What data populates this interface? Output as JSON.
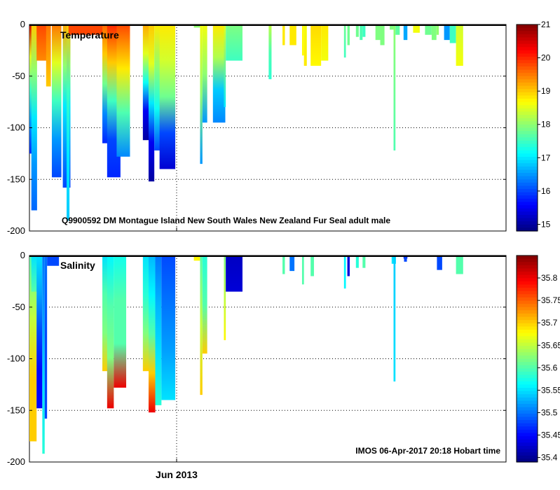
{
  "chart_data": [
    {
      "type": "heatmap",
      "title": "Temperature",
      "annotation": "Q9900592 DM Montague Island New South Wales New Zealand Fur Seal adult male",
      "ylim": [
        -200,
        0
      ],
      "yticks": [
        0,
        -50,
        -100,
        -150,
        -200
      ],
      "colorbar": {
        "min": 14.8,
        "max": 21.0,
        "ticks": [
          21,
          20,
          19,
          18,
          17,
          16,
          15
        ]
      },
      "profiles": [
        {
          "x": 0.0,
          "w": 1.5,
          "depth": 125,
          "v": [
            20.5,
            18.5,
            17.5,
            16.5,
            15.8
          ]
        },
        {
          "x": 0.4,
          "w": 1.2,
          "depth": 180,
          "v": [
            19.0,
            18.0,
            17.0,
            16.5,
            16.2
          ]
        },
        {
          "x": 1.5,
          "w": 2.2,
          "depth": 35,
          "v": [
            19.8,
            19.6,
            19.4
          ]
        },
        {
          "x": 3.5,
          "w": 1.0,
          "depth": 60,
          "v": [
            19.5,
            19.0
          ]
        },
        {
          "x": 4.7,
          "w": 2.0,
          "depth": 148,
          "v": [
            19.5,
            18.5,
            17.5,
            16.5,
            16.0
          ]
        },
        {
          "x": 7.0,
          "w": 1.6,
          "depth": 158,
          "v": [
            19.2,
            18.0,
            17.0,
            16.5,
            16.0
          ]
        },
        {
          "x": 7.8,
          "w": 0.6,
          "depth": 190,
          "v": [
            19.0,
            17.5,
            17.0,
            16.8
          ]
        },
        {
          "x": 8.2,
          "w": 7.5,
          "depth": 10,
          "v": [
            19.8
          ]
        },
        {
          "x": 15.3,
          "w": 1.6,
          "depth": 115,
          "v": [
            19.6,
            19.0,
            17.8,
            16.4,
            15.8
          ]
        },
        {
          "x": 16.3,
          "w": 2.8,
          "depth": 148,
          "v": [
            20.0,
            19.0,
            17.5,
            16.0,
            15.8
          ]
        },
        {
          "x": 18.3,
          "w": 2.8,
          "depth": 128,
          "v": [
            19.8,
            18.8,
            17.6,
            16.4
          ]
        },
        {
          "x": 23.8,
          "w": 1.2,
          "depth": 112,
          "v": [
            19.2,
            18.5,
            17.2,
            15.5,
            15.0
          ]
        },
        {
          "x": 25.0,
          "w": 1.2,
          "depth": 152,
          "v": [
            19.0,
            18.5,
            17.0,
            15.5,
            15.0
          ]
        },
        {
          "x": 26.2,
          "w": 1.3,
          "depth": 122,
          "v": [
            18.8,
            18.0,
            17.2,
            16.0
          ]
        },
        {
          "x": 27.3,
          "w": 3.3,
          "depth": 140,
          "v": [
            18.8,
            18.4,
            17.8,
            16.0,
            15.3
          ]
        },
        {
          "x": 34.5,
          "w": 1.3,
          "depth": 3,
          "v": [
            18.0
          ]
        },
        {
          "x": 35.8,
          "w": 0.5,
          "depth": 135,
          "v": [
            18.6,
            18.0,
            16.5
          ]
        },
        {
          "x": 36.3,
          "w": 1.0,
          "depth": 95,
          "v": [
            18.6,
            18.0,
            16.5
          ]
        },
        {
          "x": 38.5,
          "w": 2.6,
          "depth": 95,
          "v": [
            18.8,
            18.2,
            16.8,
            16.4
          ]
        },
        {
          "x": 40.8,
          "w": 0.4,
          "depth": 80,
          "v": [
            18.5,
            17.0
          ]
        },
        {
          "x": 41.2,
          "w": 3.5,
          "depth": 35,
          "v": [
            17.9,
            17.7,
            17.5
          ]
        },
        {
          "x": 50.2,
          "w": 0.6,
          "depth": 53,
          "v": [
            18.3,
            17.6,
            17.4
          ]
        },
        {
          "x": 53.1,
          "w": 0.5,
          "depth": 20,
          "v": [
            18.8
          ]
        },
        {
          "x": 54.6,
          "w": 1.4,
          "depth": 20,
          "v": [
            18.8
          ]
        },
        {
          "x": 57.2,
          "w": 0.4,
          "depth": 30,
          "v": [
            18.7
          ]
        },
        {
          "x": 57.6,
          "w": 0.6,
          "depth": 40,
          "v": [
            18.6,
            18.8
          ]
        },
        {
          "x": 59.0,
          "w": 2.2,
          "depth": 40,
          "v": [
            18.9,
            18.7
          ]
        },
        {
          "x": 61.2,
          "w": 1.5,
          "depth": 35,
          "v": [
            18.8,
            18.6
          ]
        },
        {
          "x": 66.0,
          "w": 0.4,
          "depth": 32,
          "v": [
            17.8,
            17.5
          ]
        },
        {
          "x": 66.7,
          "w": 0.5,
          "depth": 20,
          "v": [
            17.8
          ]
        },
        {
          "x": 68.5,
          "w": 0.6,
          "depth": 12,
          "v": [
            17.8
          ]
        },
        {
          "x": 69.3,
          "w": 0.6,
          "depth": 15,
          "v": [
            17.6
          ]
        },
        {
          "x": 69.9,
          "w": 0.6,
          "depth": 12,
          "v": [
            17.5
          ]
        },
        {
          "x": 72.6,
          "w": 1.0,
          "depth": 15,
          "v": [
            17.9
          ]
        },
        {
          "x": 73.6,
          "w": 0.9,
          "depth": 20,
          "v": [
            17.9
          ]
        },
        {
          "x": 75.6,
          "w": 0.8,
          "depth": 5,
          "v": [
            17.9
          ]
        },
        {
          "x": 76.4,
          "w": 0.4,
          "depth": 122,
          "v": [
            18.0,
            17.8,
            17.6
          ]
        },
        {
          "x": 76.8,
          "w": 0.9,
          "depth": 10,
          "v": [
            17.7
          ]
        },
        {
          "x": 78.5,
          "w": 0.8,
          "depth": 15,
          "v": [
            16.6
          ]
        },
        {
          "x": 80.5,
          "w": 1.4,
          "depth": 8,
          "v": [
            18.6
          ]
        },
        {
          "x": 83.0,
          "w": 1.4,
          "depth": 10,
          "v": [
            17.8
          ]
        },
        {
          "x": 84.4,
          "w": 1.0,
          "depth": 15,
          "v": [
            17.9
          ]
        },
        {
          "x": 85.4,
          "w": 0.5,
          "depth": 10,
          "v": [
            18.0
          ]
        },
        {
          "x": 87.0,
          "w": 1.2,
          "depth": 15,
          "v": [
            16.5
          ]
        },
        {
          "x": 88.2,
          "w": 1.3,
          "depth": 18,
          "v": [
            17.5
          ]
        },
        {
          "x": 89.5,
          "w": 1.5,
          "depth": 40,
          "v": [
            18.4,
            18.6
          ]
        }
      ]
    },
    {
      "type": "heatmap",
      "title": "Salinity",
      "annotation": "IMOS 06-Apr-2017 20:18 Hobart time",
      "xlabel": "Jun 2013",
      "ylim": [
        -200,
        0
      ],
      "yticks": [
        0,
        -50,
        -100,
        -150,
        -200
      ],
      "colorbar": {
        "min": 35.39,
        "max": 35.85,
        "ticks": [
          35.8,
          35.75,
          35.7,
          35.65,
          35.6,
          35.55,
          35.5,
          35.45,
          35.4
        ]
      },
      "profiles": [
        {
          "x": 0.0,
          "w": 1.5,
          "depth": 180,
          "v": [
            35.6,
            35.65,
            35.7,
            35.7
          ]
        },
        {
          "x": 0.4,
          "w": 1.2,
          "depth": 35,
          "v": [
            35.55,
            35.6
          ]
        },
        {
          "x": 1.5,
          "w": 1.2,
          "depth": 148,
          "v": [
            35.55,
            35.52,
            35.48,
            35.45,
            35.45
          ]
        },
        {
          "x": 2.7,
          "w": 0.5,
          "depth": 192,
          "v": [
            35.5,
            35.52,
            35.55,
            35.58
          ]
        },
        {
          "x": 3.2,
          "w": 0.5,
          "depth": 158,
          "v": [
            35.5,
            35.48,
            35.48
          ]
        },
        {
          "x": 3.7,
          "w": 2.5,
          "depth": 10,
          "v": [
            35.48
          ]
        },
        {
          "x": 15.3,
          "w": 1.6,
          "depth": 112,
          "v": [
            35.55,
            35.6,
            35.62,
            35.7
          ]
        },
        {
          "x": 16.3,
          "w": 1.4,
          "depth": 148,
          "v": [
            35.56,
            35.6,
            35.62,
            35.8
          ]
        },
        {
          "x": 17.7,
          "w": 2.6,
          "depth": 128,
          "v": [
            35.57,
            35.6,
            35.6,
            35.8
          ]
        },
        {
          "x": 23.8,
          "w": 1.2,
          "depth": 112,
          "v": [
            35.55,
            35.58,
            35.62,
            35.7
          ]
        },
        {
          "x": 25.0,
          "w": 1.4,
          "depth": 152,
          "v": [
            35.53,
            35.56,
            35.6,
            35.7,
            35.8
          ]
        },
        {
          "x": 26.4,
          "w": 1.3,
          "depth": 145,
          "v": [
            35.5,
            35.53,
            35.55,
            35.58
          ]
        },
        {
          "x": 27.7,
          "w": 2.9,
          "depth": 140,
          "v": [
            35.48,
            35.5,
            35.52,
            35.55
          ]
        },
        {
          "x": 34.5,
          "w": 1.3,
          "depth": 5,
          "v": [
            35.68
          ]
        },
        {
          "x": 35.8,
          "w": 0.5,
          "depth": 135,
          "v": [
            35.6,
            35.65,
            35.7
          ]
        },
        {
          "x": 36.3,
          "w": 1.0,
          "depth": 95,
          "v": [
            35.58,
            35.6,
            35.7
          ]
        },
        {
          "x": 40.8,
          "w": 0.4,
          "depth": 82,
          "v": [
            35.62,
            35.68
          ]
        },
        {
          "x": 41.2,
          "w": 3.5,
          "depth": 35,
          "v": [
            35.42,
            35.43
          ]
        },
        {
          "x": 53.1,
          "w": 0.5,
          "depth": 18,
          "v": [
            35.6
          ]
        },
        {
          "x": 54.6,
          "w": 1.0,
          "depth": 15,
          "v": [
            35.5
          ]
        },
        {
          "x": 57.2,
          "w": 0.4,
          "depth": 28,
          "v": [
            35.6
          ]
        },
        {
          "x": 59.0,
          "w": 0.7,
          "depth": 20,
          "v": [
            35.6
          ]
        },
        {
          "x": 66.0,
          "w": 0.4,
          "depth": 32,
          "v": [
            35.56
          ]
        },
        {
          "x": 66.7,
          "w": 0.5,
          "depth": 20,
          "v": [
            35.43
          ]
        },
        {
          "x": 68.5,
          "w": 0.6,
          "depth": 12,
          "v": [
            35.58
          ]
        },
        {
          "x": 69.9,
          "w": 0.6,
          "depth": 12,
          "v": [
            35.6
          ]
        },
        {
          "x": 76.0,
          "w": 0.9,
          "depth": 8,
          "v": [
            35.55
          ]
        },
        {
          "x": 76.4,
          "w": 0.4,
          "depth": 122,
          "v": [
            35.54,
            35.55
          ]
        },
        {
          "x": 78.5,
          "w": 0.8,
          "depth": 3,
          "v": [
            35.43
          ]
        },
        {
          "x": 78.6,
          "w": 0.6,
          "depth": 6,
          "v": [
            35.48
          ]
        },
        {
          "x": 85.5,
          "w": 1.1,
          "depth": 14,
          "v": [
            35.48
          ]
        },
        {
          "x": 89.5,
          "w": 1.5,
          "depth": 18,
          "v": [
            35.6
          ]
        }
      ]
    }
  ]
}
